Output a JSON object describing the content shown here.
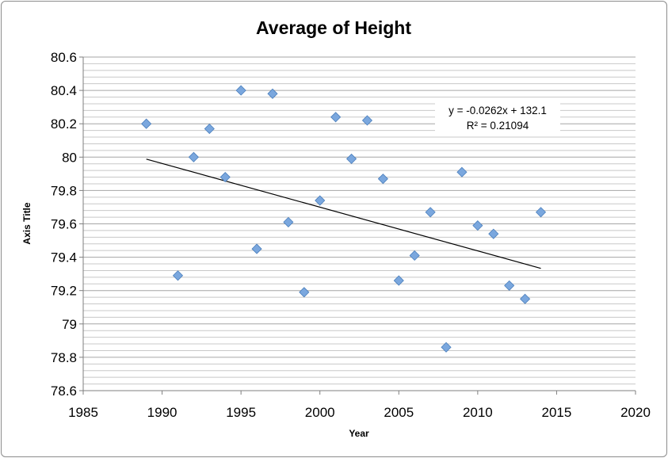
{
  "chart_data": {
    "type": "scatter",
    "title": "Average of Height",
    "xlabel": "Year",
    "ylabel": "Axis Title",
    "xlim": [
      1985,
      2020
    ],
    "ylim": [
      78.6,
      80.6
    ],
    "xticks": [
      "1985",
      "1990",
      "1995",
      "2000",
      "2005",
      "2010",
      "2015",
      "2020"
    ],
    "yticks": [
      "78.6",
      "78.8",
      "79",
      "79.2",
      "79.4",
      "79.6",
      "79.8",
      "80",
      "80.2",
      "80.4",
      "80.6"
    ],
    "grid": true,
    "marker_color": "#7aa7de",
    "series": [
      {
        "x": [
          1989,
          1991,
          1992,
          1993,
          1994,
          1995,
          1996,
          1997,
          1998,
          1999,
          2000,
          2001,
          2002,
          2003,
          2004,
          2005,
          2006,
          2007,
          2008,
          2009,
          2010,
          2011,
          2012,
          2013,
          2014
        ],
        "y": [
          80.2,
          79.29,
          80.0,
          80.17,
          79.88,
          80.4,
          79.45,
          80.38,
          79.61,
          79.19,
          79.74,
          80.24,
          79.99,
          80.22,
          79.87,
          79.26,
          79.41,
          79.67,
          78.86,
          79.91,
          79.59,
          79.54,
          79.23,
          79.15,
          79.67
        ]
      }
    ],
    "trendline": {
      "type": "linear",
      "x_range": [
        1989,
        2014
      ],
      "slope": -0.0262,
      "intercept": 132.1,
      "equation": "y = -0.0262x + 132.1",
      "r_squared": "R² = 0.21094"
    }
  }
}
